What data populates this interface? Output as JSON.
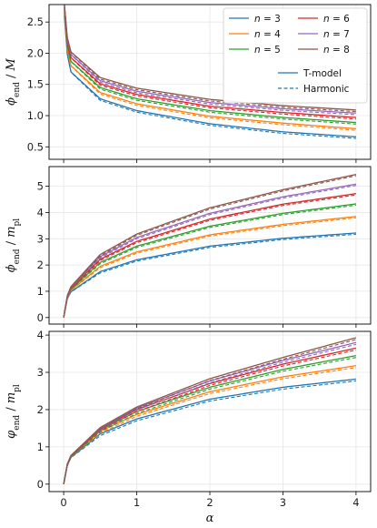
{
  "chart_data": [
    {
      "type": "line",
      "panel": "top",
      "ylabel": "φ_end / M",
      "xlabel": "",
      "xlim": [
        -0.2,
        4.2
      ],
      "ylim": [
        0.3,
        2.78
      ],
      "xticks": [
        0,
        1,
        2,
        3,
        4
      ],
      "yticks": [
        "0.5",
        "1.0",
        "1.5",
        "2.0",
        "2.5"
      ],
      "ytick_values": [
        0.5,
        1.0,
        1.5,
        2.0,
        2.5
      ],
      "grid": true,
      "legend": {
        "placement": "top-right",
        "entries": [
          "n = 3",
          "n = 4",
          "n = 5",
          "n = 6",
          "n = 7",
          "n = 8"
        ],
        "style_entries": [
          "T-model",
          "Harmonic"
        ]
      },
      "series": [
        {
          "name": "n = 3",
          "color": "#1f77b4",
          "t_model": {
            "x": [
              0.01,
              0.05,
              0.1,
              0.5,
              1,
              2,
              3,
              4
            ],
            "y": [
              2.6,
              1.98,
              1.7,
              1.27,
              1.08,
              0.87,
              0.74,
              0.66
            ]
          }
        },
        {
          "name": "n = 4",
          "color": "#ff7f0e",
          "t_model": {
            "x": [
              0.01,
              0.05,
              0.1,
              0.5,
              1,
              2,
              3,
              4
            ],
            "y": [
              2.65,
              2.06,
              1.8,
              1.37,
              1.19,
              0.99,
              0.88,
              0.79
            ]
          }
        },
        {
          "name": "n = 5",
          "color": "#2ca02c",
          "t_model": {
            "x": [
              0.01,
              0.05,
              0.1,
              0.5,
              1,
              2,
              3,
              4
            ],
            "y": [
              2.7,
              2.12,
              1.87,
              1.45,
              1.27,
              1.08,
              0.97,
              0.89
            ]
          }
        },
        {
          "name": "n = 6",
          "color": "#d62728",
          "t_model": {
            "x": [
              0.01,
              0.05,
              0.1,
              0.5,
              1,
              2,
              3,
              4
            ],
            "y": [
              2.73,
              2.17,
              1.93,
              1.51,
              1.34,
              1.15,
              1.05,
              0.97
            ]
          }
        },
        {
          "name": "n = 7",
          "color": "#9467bd",
          "t_model": {
            "x": [
              0.01,
              0.05,
              0.1,
              0.5,
              1,
              2,
              3,
              4
            ],
            "y": [
              2.76,
              2.21,
              1.98,
              1.56,
              1.39,
              1.21,
              1.11,
              1.04
            ]
          }
        },
        {
          "name": "n = 8",
          "color": "#8c564b",
          "t_model": {
            "x": [
              0.01,
              0.05,
              0.1,
              0.5,
              1,
              2,
              3,
              4
            ],
            "y": [
              2.78,
              2.25,
              2.02,
              1.61,
              1.44,
              1.26,
              1.16,
              1.09
            ]
          }
        }
      ]
    },
    {
      "type": "line",
      "panel": "middle",
      "ylabel": "φ_end / m_pl",
      "xlabel": "",
      "xlim": [
        -0.2,
        4.2
      ],
      "ylim": [
        -0.25,
        5.75
      ],
      "xticks": [
        0,
        1,
        2,
        3,
        4
      ],
      "yticks": [
        "0",
        "1",
        "2",
        "3",
        "4",
        "5"
      ],
      "ytick_values": [
        0,
        1,
        2,
        3,
        4,
        5
      ],
      "grid": true,
      "series": [
        {
          "name": "n = 3",
          "color": "#1f77b4",
          "t_model": {
            "x": [
              0,
              0.05,
              0.1,
              0.5,
              1,
              2,
              3,
              4
            ],
            "y": [
              0,
              0.72,
              0.98,
              1.75,
              2.2,
              2.72,
              3.02,
              3.22
            ]
          }
        },
        {
          "name": "n = 4",
          "color": "#ff7f0e",
          "t_model": {
            "x": [
              0,
              0.05,
              0.1,
              0.5,
              1,
              2,
              3,
              4
            ],
            "y": [
              0,
              0.75,
              1.04,
              1.95,
              2.5,
              3.15,
              3.55,
              3.85
            ]
          }
        },
        {
          "name": "n = 5",
          "color": "#2ca02c",
          "t_model": {
            "x": [
              0,
              0.05,
              0.1,
              0.5,
              1,
              2,
              3,
              4
            ],
            "y": [
              0,
              0.78,
              1.08,
              2.1,
              2.72,
              3.48,
              3.97,
              4.33
            ]
          }
        },
        {
          "name": "n = 6",
          "color": "#d62728",
          "t_model": {
            "x": [
              0,
              0.05,
              0.1,
              0.5,
              1,
              2,
              3,
              4
            ],
            "y": [
              0,
              0.8,
              1.12,
              2.22,
              2.9,
              3.75,
              4.32,
              4.72
            ]
          }
        },
        {
          "name": "n = 7",
          "color": "#9467bd",
          "t_model": {
            "x": [
              0,
              0.05,
              0.1,
              0.5,
              1,
              2,
              3,
              4
            ],
            "y": [
              0,
              0.82,
              1.15,
              2.32,
              3.05,
              3.97,
              4.6,
              5.08
            ]
          }
        },
        {
          "name": "n = 8",
          "color": "#8c564b",
          "t_model": {
            "x": [
              0,
              0.05,
              0.1,
              0.5,
              1,
              2,
              3,
              4
            ],
            "y": [
              0,
              0.84,
              1.18,
              2.4,
              3.18,
              4.18,
              4.87,
              5.45
            ]
          }
        }
      ]
    },
    {
      "type": "line",
      "panel": "bottom",
      "ylabel": "φ_end / m_pl",
      "xlabel": "α",
      "xlim": [
        -0.2,
        4.2
      ],
      "ylim": [
        -0.2,
        4.1
      ],
      "xticks": [
        0,
        1,
        2,
        3,
        4
      ],
      "xtick_labels": [
        "0",
        "1",
        "2",
        "3",
        "4"
      ],
      "yticks": [
        "0",
        "1",
        "2",
        "3",
        "4"
      ],
      "ytick_values": [
        0,
        1,
        2,
        3,
        4
      ],
      "grid": true,
      "series": [
        {
          "name": "n = 3",
          "color": "#1f77b4",
          "t_model": {
            "x": [
              0,
              0.05,
              0.1,
              0.5,
              1,
              2,
              3,
              4
            ],
            "y": [
              0,
              0.5,
              0.72,
              1.35,
              1.75,
              2.28,
              2.6,
              2.82
            ]
          }
        },
        {
          "name": "n = 4",
          "color": "#ff7f0e",
          "t_model": {
            "x": [
              0,
              0.05,
              0.1,
              0.5,
              1,
              2,
              3,
              4
            ],
            "y": [
              0,
              0.52,
              0.74,
              1.42,
              1.87,
              2.48,
              2.88,
              3.18
            ]
          }
        },
        {
          "name": "n = 5",
          "color": "#2ca02c",
          "t_model": {
            "x": [
              0,
              0.05,
              0.1,
              0.5,
              1,
              2,
              3,
              4
            ],
            "y": [
              0,
              0.53,
              0.75,
              1.45,
              1.95,
              2.6,
              3.08,
              3.45
            ]
          }
        },
        {
          "name": "n = 6",
          "color": "#d62728",
          "t_model": {
            "x": [
              0,
              0.05,
              0.1,
              0.5,
              1,
              2,
              3,
              4
            ],
            "y": [
              0,
              0.53,
              0.76,
              1.48,
              2.0,
              2.7,
              3.22,
              3.65
            ]
          }
        },
        {
          "name": "n = 7",
          "color": "#9467bd",
          "t_model": {
            "x": [
              0,
              0.05,
              0.1,
              0.5,
              1,
              2,
              3,
              4
            ],
            "y": [
              0,
              0.54,
              0.77,
              1.5,
              2.04,
              2.77,
              3.32,
              3.8
            ]
          }
        },
        {
          "name": "n = 8",
          "color": "#8c564b",
          "t_model": {
            "x": [
              0,
              0.05,
              0.1,
              0.5,
              1,
              2,
              3,
              4
            ],
            "y": [
              0,
              0.54,
              0.77,
              1.52,
              2.07,
              2.83,
              3.4,
              3.93
            ]
          }
        }
      ]
    }
  ]
}
